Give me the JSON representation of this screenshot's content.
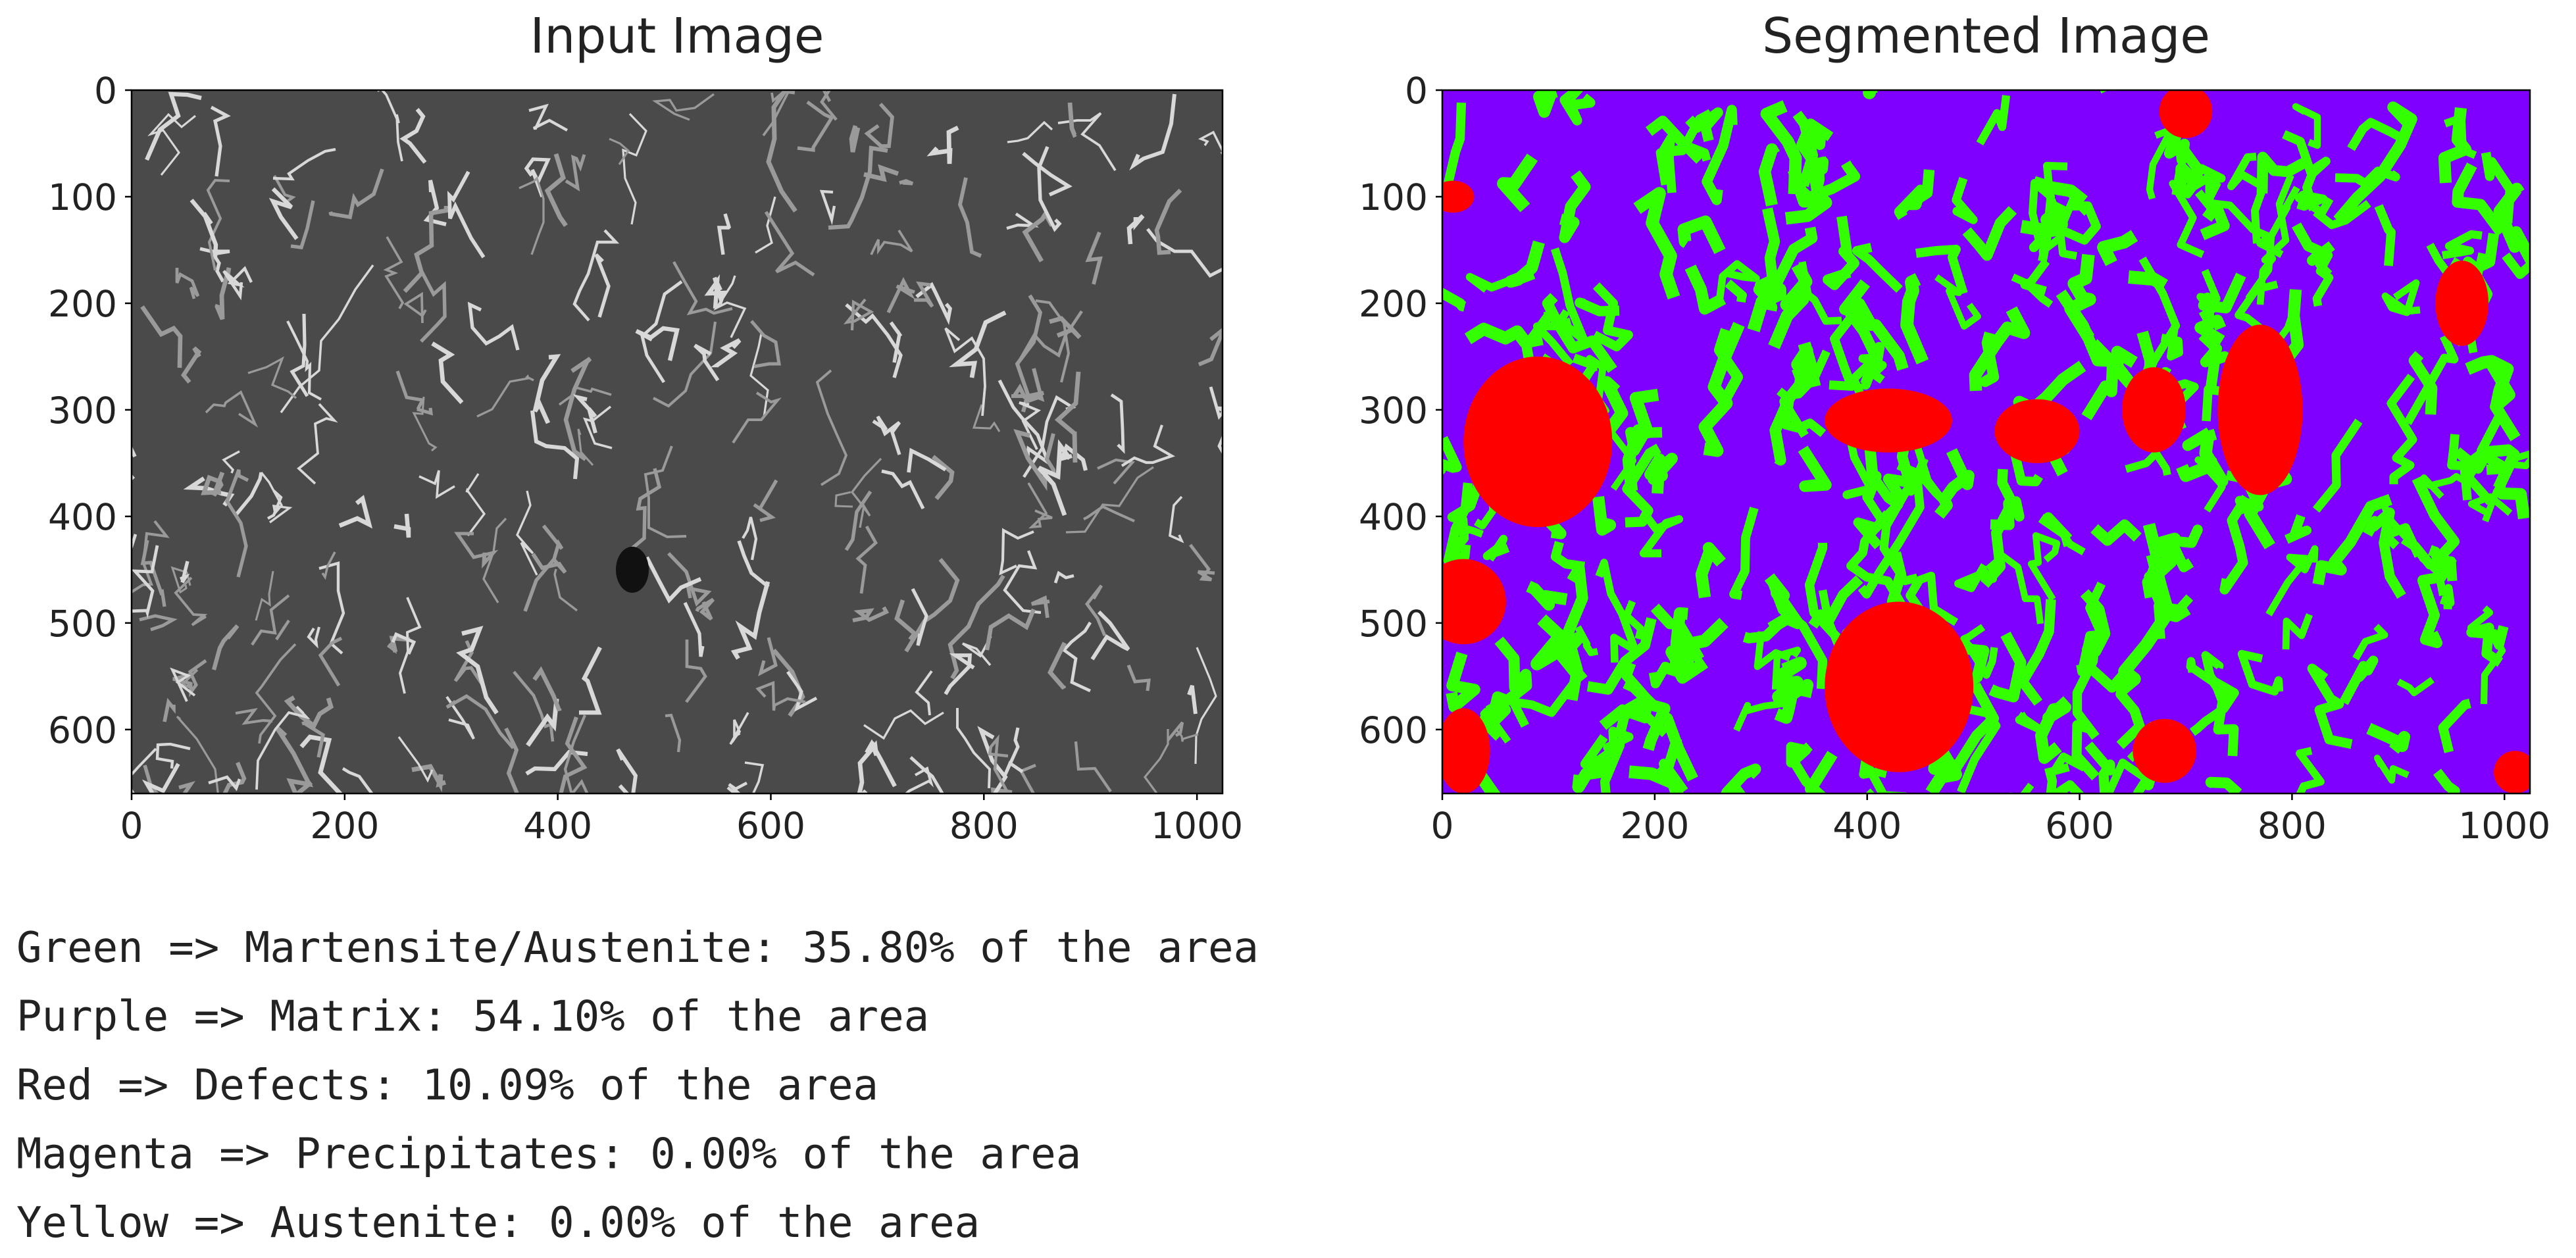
{
  "chart_data": [
    {
      "type": "image",
      "title": "Input Image",
      "xlim": [
        0,
        1024
      ],
      "ylim": [
        660,
        0
      ],
      "xticks": [
        0,
        200,
        400,
        600,
        800,
        1000
      ],
      "yticks": [
        0,
        100,
        200,
        300,
        400,
        500,
        600
      ]
    },
    {
      "type": "image",
      "title": "Segmented Image",
      "xlim": [
        0,
        1024
      ],
      "ylim": [
        660,
        0
      ],
      "xticks": [
        0,
        200,
        400,
        600,
        800,
        1000
      ],
      "yticks": [
        0,
        100,
        200,
        300,
        400,
        500,
        600
      ]
    }
  ],
  "output": {
    "lines": [
      "Green => Martensite/Austenite: 35.80% of the area",
      "Purple => Matrix: 54.10% of the area",
      "Red => Defects: 10.09% of the area",
      "Magenta => Precipitates: 0.00% of the area",
      "Yellow => Austenite: 0.00% of the area"
    ]
  }
}
